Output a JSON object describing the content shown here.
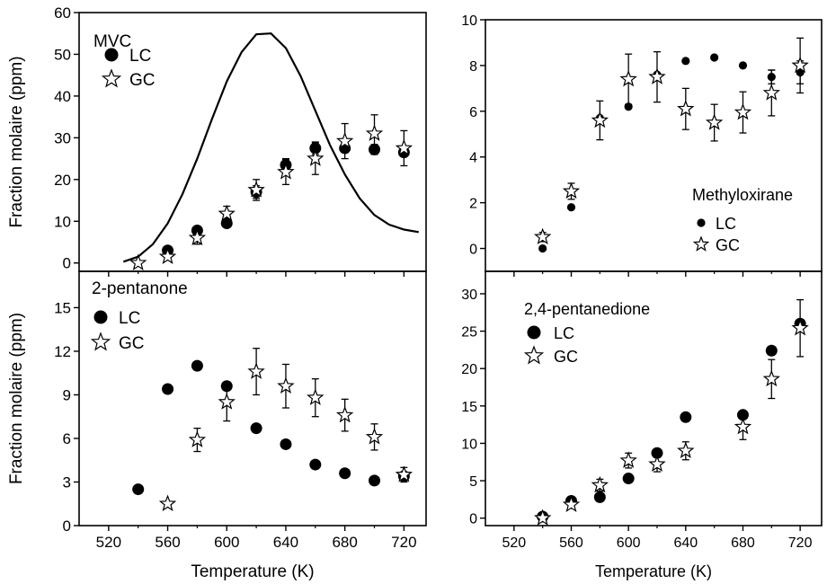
{
  "chart_data": [
    {
      "type": "scatter",
      "label": "MVC",
      "ylabel": "Fraction molaire (ppm)",
      "xlabel": "",
      "xlim": [
        500,
        735
      ],
      "ylim": [
        -2,
        60
      ],
      "xticks": [
        520,
        560,
        600,
        640,
        680,
        720
      ],
      "xtick_labels": [],
      "yticks": [
        0,
        10,
        20,
        30,
        40,
        50,
        60
      ],
      "ytick_labels": [
        "0",
        "10",
        "20",
        "30",
        "40",
        "50",
        "60"
      ],
      "legend_position": "top-left",
      "series": [
        {
          "name": "LC",
          "marker": "circle",
          "x": [
            560,
            580,
            600,
            620,
            640,
            660,
            680,
            700,
            720
          ],
          "y": [
            3,
            7.8,
            9.5,
            17,
            23.5,
            27.5,
            27.5,
            27.2,
            26.5
          ],
          "err": [
            0,
            0,
            0,
            1.5,
            1.5,
            1.5,
            0,
            1.2,
            0
          ]
        },
        {
          "name": "GC",
          "marker": "star",
          "x": [
            540,
            560,
            580,
            600,
            620,
            640,
            660,
            680,
            700,
            720
          ],
          "y": [
            0,
            1.5,
            6,
            11.8,
            17.5,
            21.8,
            25,
            29.2,
            31,
            27.5
          ],
          "err": [
            0,
            0,
            1.5,
            1.8,
            2.5,
            3,
            3.8,
            4.2,
            4.5,
            4.2
          ]
        },
        {
          "name": "",
          "style": "curve",
          "x": [
            530,
            540,
            550,
            560,
            570,
            580,
            590,
            600,
            610,
            620,
            630,
            640,
            650,
            660,
            670,
            680,
            690,
            700,
            710,
            720,
            730
          ],
          "y": [
            0.3,
            1.5,
            4.5,
            9.5,
            16.5,
            25,
            34.5,
            43.5,
            50.5,
            54.8,
            55,
            51.5,
            44.8,
            36.5,
            28.2,
            21.2,
            15.5,
            11.5,
            9.2,
            8,
            7.4
          ]
        }
      ]
    },
    {
      "type": "scatter",
      "label": "Methyloxirane",
      "ylabel": "",
      "xlabel": "",
      "xlim": [
        500,
        735
      ],
      "ylim": [
        -1,
        10
      ],
      "xticks": [
        520,
        560,
        600,
        640,
        680,
        720
      ],
      "xtick_labels": [],
      "yticks": [
        0,
        2,
        4,
        6,
        8,
        10
      ],
      "ytick_labels": [
        "0",
        "2",
        "4",
        "6",
        "8",
        "10"
      ],
      "legend_position": "center-right",
      "series": [
        {
          "name": "LC",
          "marker": "circle",
          "x": [
            540,
            560,
            580,
            600,
            620,
            640,
            660,
            680,
            700,
            720
          ],
          "y": [
            0,
            1.8,
            5.7,
            6.2,
            7.6,
            8.2,
            8.35,
            8,
            7.5,
            7.7
          ],
          "err": [
            0,
            0,
            0,
            0,
            0,
            0,
            0,
            0,
            0.3,
            0.5
          ]
        },
        {
          "name": "GC",
          "marker": "star",
          "x": [
            540,
            560,
            580,
            600,
            620,
            640,
            660,
            680,
            700,
            720
          ],
          "y": [
            0.5,
            2.5,
            5.6,
            7.4,
            7.5,
            6.1,
            5.5,
            5.95,
            6.8,
            8
          ],
          "err": [
            0.2,
            0.35,
            0.85,
            1.1,
            1.1,
            0.9,
            0.8,
            0.9,
            1,
            1.2
          ]
        }
      ]
    },
    {
      "type": "scatter",
      "label": "2-pentanone",
      "ylabel": "Fraction molaire (ppm)",
      "xlabel": "Temperature (K)",
      "xlim": [
        500,
        735
      ],
      "ylim": [
        0,
        17.5
      ],
      "xticks": [
        520,
        560,
        600,
        640,
        680,
        720
      ],
      "xtick_labels": [
        "520",
        "560",
        "600",
        "640",
        "680",
        "720"
      ],
      "yticks": [
        0,
        3,
        6,
        9,
        12,
        15
      ],
      "ytick_labels": [
        "0",
        "3",
        "6",
        "9",
        "12",
        "15"
      ],
      "legend_position": "top-left",
      "series": [
        {
          "name": "LC",
          "marker": "circle",
          "x": [
            540,
            560,
            580,
            600,
            620,
            640,
            660,
            680,
            700,
            720
          ],
          "y": [
            2.5,
            9.4,
            11,
            9.6,
            6.7,
            5.6,
            4.2,
            3.6,
            3.1,
            3.4
          ],
          "err": [
            0,
            0,
            0,
            0,
            0,
            0,
            0,
            0,
            0,
            0
          ]
        },
        {
          "name": "GC",
          "marker": "star",
          "x": [
            560,
            580,
            600,
            620,
            640,
            660,
            680,
            700,
            720
          ],
          "y": [
            1.5,
            5.9,
            8.5,
            10.6,
            9.6,
            8.8,
            7.6,
            6.1,
            3.5
          ],
          "err": [
            0,
            0.8,
            1.3,
            1.6,
            1.5,
            1.3,
            1.1,
            0.9,
            0.5
          ]
        }
      ]
    },
    {
      "type": "scatter",
      "label": "2,4-pentanedione",
      "ylabel": "",
      "xlabel": "Temperature (K)",
      "xlim": [
        500,
        735
      ],
      "ylim": [
        -1,
        33
      ],
      "xticks": [
        520,
        560,
        600,
        640,
        680,
        720
      ],
      "xtick_labels": [
        "520",
        "560",
        "600",
        "640",
        "680",
        "720"
      ],
      "yticks": [
        0,
        5,
        10,
        15,
        20,
        25,
        30
      ],
      "ytick_labels": [
        "0",
        "5",
        "10",
        "15",
        "20",
        "25",
        "30"
      ],
      "legend_position": "top-left",
      "series": [
        {
          "name": "LC",
          "marker": "circle",
          "x": [
            540,
            560,
            580,
            600,
            620,
            640,
            680,
            700,
            720
          ],
          "y": [
            0.2,
            2.3,
            2.8,
            5.3,
            8.7,
            13.5,
            13.8,
            22.4,
            26
          ],
          "err": [
            0,
            0,
            0,
            0,
            0,
            0,
            0,
            0,
            0
          ]
        },
        {
          "name": "GC",
          "marker": "star",
          "x": [
            540,
            560,
            580,
            600,
            620,
            640,
            680,
            700,
            720
          ],
          "y": [
            0,
            1.8,
            4.4,
            7.7,
            7.2,
            9,
            12.2,
            18.6,
            25.4
          ],
          "err": [
            0,
            0.5,
            0.8,
            1,
            1,
            1.2,
            1.7,
            2.6,
            3.8
          ]
        }
      ]
    }
  ]
}
